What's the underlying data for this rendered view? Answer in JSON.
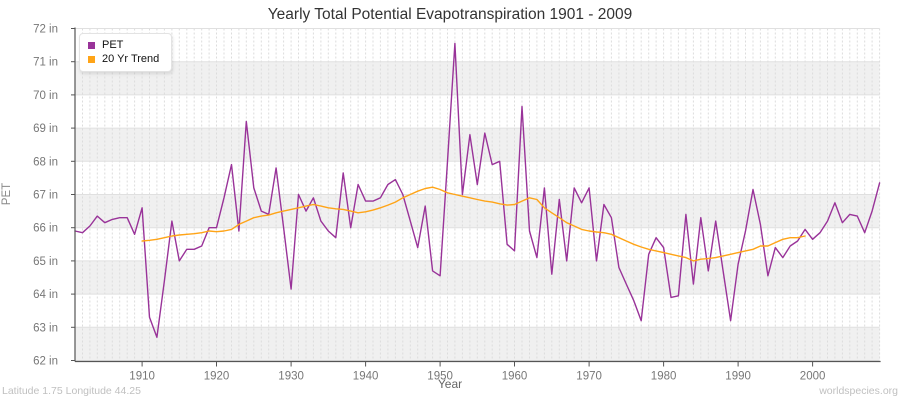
{
  "page": {
    "title": "Yearly Total Potential Evapotranspiration 1901 - 2009",
    "footer_left": "Latitude 1.75 Longitude 44.25",
    "footer_right": "worldspecies.org"
  },
  "colors": {
    "pet_line": "#993399",
    "trend_line": "#ffa417",
    "band_gray": "#f0f0f0",
    "band_white": "#ffffff",
    "grid_h": "#e0e0e0",
    "grid_v": "#dcdcdc",
    "axis": "#555555",
    "tick_text": "#777777"
  },
  "chart_data": {
    "type": "line",
    "title": "Yearly Total Potential Evapotranspiration 1901 - 2009",
    "xlabel": "Year",
    "ylabel": "PET",
    "y_unit": "in",
    "xlim": [
      1901,
      2009
    ],
    "ylim": [
      62,
      72
    ],
    "yticks": [
      62,
      63,
      64,
      65,
      66,
      67,
      68,
      69,
      70,
      71,
      72
    ],
    "xticks": [
      1910,
      1920,
      1930,
      1940,
      1950,
      1960,
      1970,
      1980,
      1990,
      2000
    ],
    "grid": "horizontal solid lines each inch, vertical dashed line each year, alternating horizontal shading bands",
    "legend": {
      "position": "top-left",
      "entries": [
        {
          "label": "PET",
          "color": "#993399"
        },
        {
          "label": "20 Yr Trend",
          "color": "#ffa417"
        }
      ]
    },
    "series": [
      {
        "name": "PET",
        "color": "#993399",
        "x_start": 1901,
        "values": [
          65.9,
          65.85,
          66.05,
          66.35,
          66.15,
          66.25,
          66.3,
          66.3,
          65.8,
          66.6,
          63.3,
          62.7,
          64.4,
          66.2,
          65.0,
          65.35,
          65.35,
          65.45,
          66.0,
          66.0,
          66.9,
          67.9,
          65.9,
          69.2,
          67.2,
          66.5,
          66.4,
          67.8,
          66.0,
          64.15,
          67.0,
          66.5,
          66.9,
          66.2,
          65.9,
          65.7,
          67.65,
          66.0,
          67.3,
          66.8,
          66.8,
          66.9,
          67.3,
          67.45,
          67.0,
          66.2,
          65.4,
          66.65,
          64.7,
          64.55,
          68.0,
          71.55,
          67.0,
          68.8,
          67.3,
          68.85,
          67.9,
          68.0,
          65.5,
          65.3,
          69.65,
          65.9,
          65.1,
          67.2,
          64.6,
          66.85,
          65.0,
          67.2,
          66.75,
          67.2,
          65.0,
          66.7,
          66.3,
          64.8,
          64.3,
          63.8,
          63.2,
          65.2,
          65.7,
          65.4,
          63.9,
          63.95,
          66.4,
          64.3,
          66.3,
          64.7,
          66.2,
          64.7,
          63.2,
          64.9,
          65.9,
          67.15,
          66.1,
          64.55,
          65.4,
          65.1,
          65.45,
          65.6,
          65.95,
          65.65,
          65.85,
          66.2,
          66.75,
          66.15,
          66.4,
          66.35,
          65.85,
          66.5,
          67.35
        ]
      },
      {
        "name": "20 Yr Trend",
        "color": "#ffa417",
        "x_start": 1910,
        "values": [
          65.6,
          65.62,
          65.65,
          65.7,
          65.75,
          65.78,
          65.8,
          65.82,
          65.85,
          65.9,
          65.88,
          65.9,
          65.95,
          66.1,
          66.2,
          66.3,
          66.35,
          66.38,
          66.45,
          66.5,
          66.55,
          66.6,
          66.65,
          66.7,
          66.65,
          66.6,
          66.57,
          66.55,
          66.5,
          66.45,
          66.48,
          66.53,
          66.6,
          66.68,
          66.77,
          66.9,
          67.0,
          67.1,
          67.18,
          67.22,
          67.15,
          67.05,
          67.0,
          66.95,
          66.9,
          66.85,
          66.8,
          66.77,
          66.72,
          66.68,
          66.7,
          66.8,
          66.9,
          66.85,
          66.6,
          66.45,
          66.3,
          66.15,
          66.05,
          65.95,
          65.9,
          65.87,
          65.85,
          65.8,
          65.7,
          65.6,
          65.5,
          65.42,
          65.35,
          65.3,
          65.25,
          65.2,
          65.15,
          65.1,
          65.0,
          65.05,
          65.07,
          65.1,
          65.15,
          65.2,
          65.25,
          65.3,
          65.35,
          65.45,
          65.45,
          65.55,
          65.65,
          65.7,
          65.7,
          65.75
        ]
      }
    ]
  }
}
